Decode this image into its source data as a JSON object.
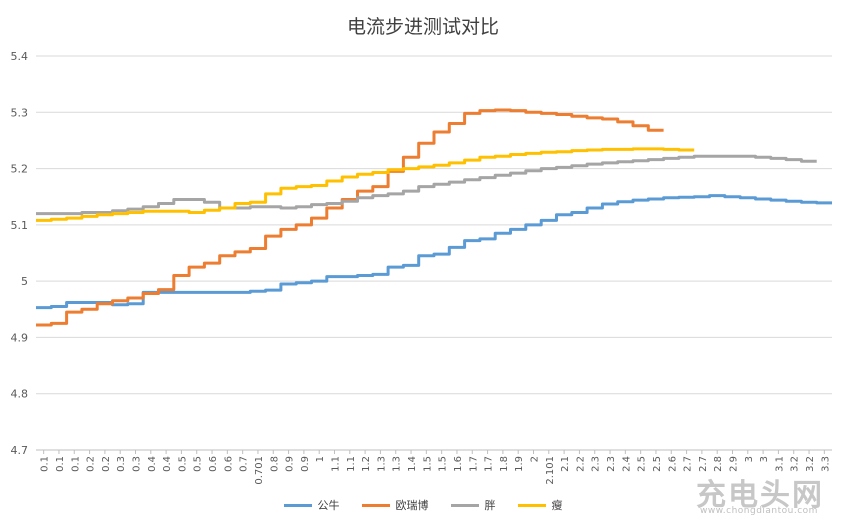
{
  "chart_data": {
    "type": "line",
    "title": "电流步进测试对比",
    "xlabel": "",
    "ylabel": "",
    "ylim": [
      4.7,
      5.4
    ],
    "yticks": [
      "4.7",
      "4.8",
      "4.9",
      "5",
      "5.1",
      "5.2",
      "5.3",
      "5.4"
    ],
    "grid": true,
    "legend_position": "bottom",
    "categories": [
      "0.1",
      "0.1",
      "0.1",
      "0.2",
      "0.2",
      "0.3",
      "0.3",
      "0.4",
      "0.4",
      "0.5",
      "0.5",
      "0.6",
      "0.6",
      "0.7",
      "0.701",
      "0.8",
      "0.9",
      "0.9",
      "1",
      "1.1",
      "1.1",
      "1.2",
      "1.3",
      "1.3",
      "1.4",
      "1.5",
      "1.5",
      "1.6",
      "1.7",
      "1.7",
      "1.8",
      "1.9",
      "2",
      "2.101",
      "2.1",
      "2.2",
      "2.3",
      "2.3",
      "2.4",
      "2.5",
      "2.5",
      "2.6",
      "2.7",
      "2.7",
      "2.8",
      "2.9",
      "3",
      "3",
      "3.1",
      "3.2",
      "3.2",
      "3.3"
    ],
    "series": [
      {
        "name": "公牛",
        "color": "#5B9BD5",
        "values": [
          4.953,
          4.955,
          4.962,
          4.962,
          4.962,
          4.958,
          4.96,
          4.98,
          4.98,
          4.98,
          4.98,
          4.98,
          4.98,
          4.98,
          4.982,
          4.984,
          4.995,
          4.997,
          5.0,
          5.008,
          5.008,
          5.01,
          5.012,
          5.025,
          5.028,
          5.045,
          5.048,
          5.06,
          5.072,
          5.075,
          5.085,
          5.092,
          5.1,
          5.108,
          5.118,
          5.122,
          5.13,
          5.137,
          5.141,
          5.144,
          5.146,
          5.148,
          5.149,
          5.15,
          5.152,
          5.15,
          5.148,
          5.146,
          5.144,
          5.142,
          5.14,
          5.139
        ]
      },
      {
        "name": "欧瑞博",
        "color": "#ED7D31",
        "values": [
          4.922,
          4.925,
          4.945,
          4.95,
          4.96,
          4.965,
          4.97,
          4.978,
          4.985,
          5.01,
          5.025,
          5.032,
          5.045,
          5.052,
          5.058,
          5.08,
          5.092,
          5.1,
          5.112,
          5.13,
          5.145,
          5.16,
          5.168,
          5.195,
          5.22,
          5.245,
          5.265,
          5.28,
          5.298,
          5.303,
          5.304,
          5.303,
          5.3,
          5.298,
          5.296,
          5.293,
          5.29,
          5.288,
          5.283,
          5.276,
          5.268,
          null,
          null,
          null,
          null,
          null,
          null,
          null,
          null,
          null,
          null,
          null
        ]
      },
      {
        "name": "胖",
        "color": "#A5A5A5",
        "values": [
          5.12,
          5.12,
          5.12,
          5.122,
          5.122,
          5.125,
          5.128,
          5.132,
          5.138,
          5.145,
          5.145,
          5.14,
          5.13,
          5.13,
          5.132,
          5.132,
          5.13,
          5.132,
          5.136,
          5.138,
          5.142,
          5.148,
          5.152,
          5.155,
          5.16,
          5.168,
          5.172,
          5.176,
          5.18,
          5.184,
          5.188,
          5.192,
          5.196,
          5.2,
          5.202,
          5.205,
          5.208,
          5.21,
          5.212,
          5.214,
          5.216,
          5.218,
          5.22,
          5.222,
          5.222,
          5.222,
          5.222,
          5.22,
          5.218,
          5.216,
          5.213,
          null
        ]
      },
      {
        "name": "瘦",
        "color": "#FFC000",
        "values": [
          5.108,
          5.11,
          5.112,
          5.115,
          5.118,
          5.12,
          5.122,
          5.124,
          5.124,
          5.124,
          5.122,
          5.126,
          5.13,
          5.138,
          5.14,
          5.155,
          5.165,
          5.168,
          5.17,
          5.178,
          5.185,
          5.19,
          5.193,
          5.198,
          5.2,
          5.203,
          5.206,
          5.21,
          5.215,
          5.22,
          5.222,
          5.225,
          5.227,
          5.229,
          5.23,
          5.232,
          5.233,
          5.234,
          5.234,
          5.235,
          5.235,
          5.234,
          5.233,
          null,
          null,
          null,
          null,
          null,
          null,
          null,
          null,
          null
        ]
      }
    ]
  },
  "watermark": {
    "glyphs": "充电头网",
    "url": "www.chongdiantou.com"
  }
}
